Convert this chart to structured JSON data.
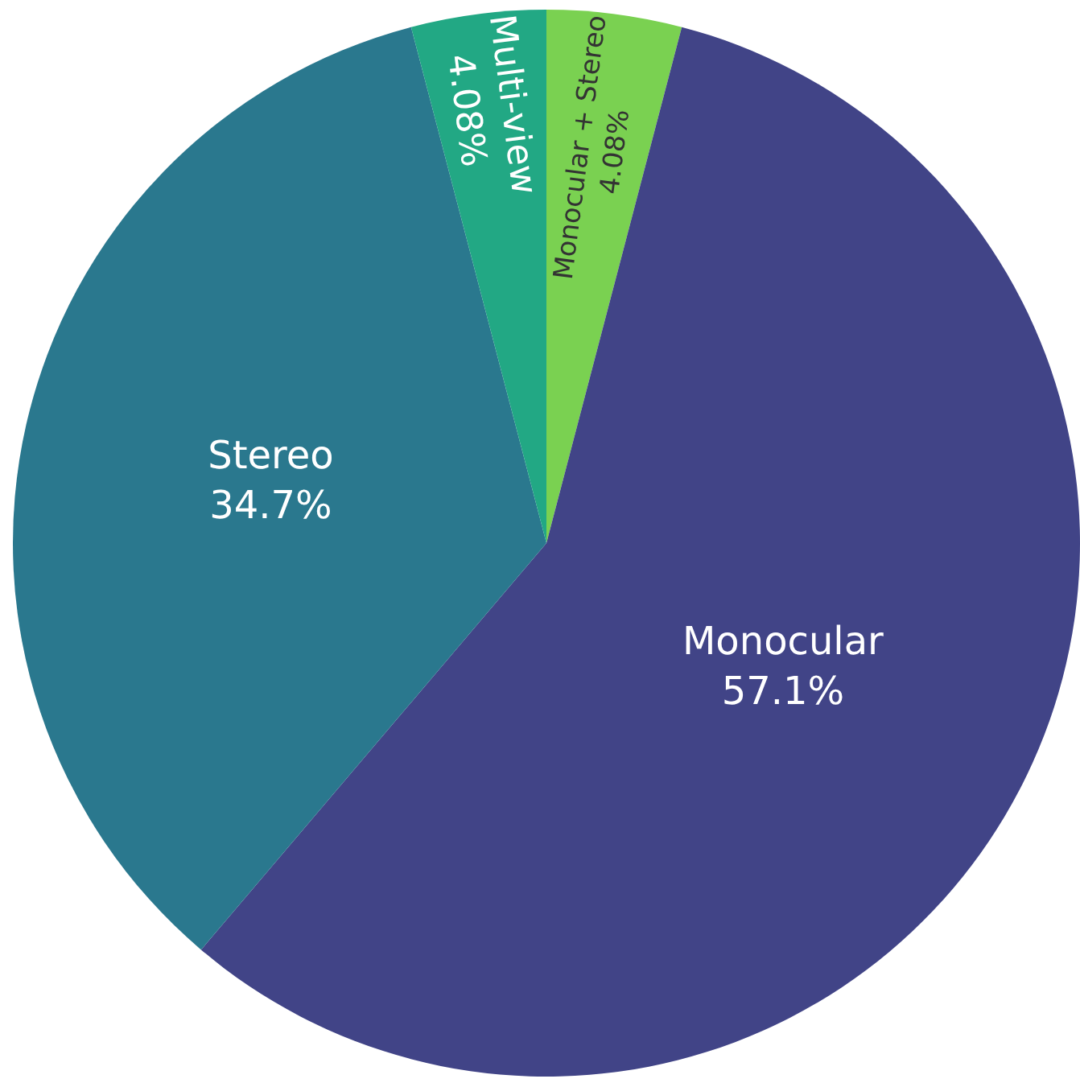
{
  "chart_data": {
    "type": "pie",
    "categories": [
      "Monocular + Stereo",
      "Monocular",
      "Stereo",
      "Multi-view"
    ],
    "values": [
      4.08,
      57.1,
      34.7,
      4.08
    ],
    "value_labels": [
      "4.08%",
      "57.1%",
      "34.7%",
      "4.08%"
    ],
    "colors": [
      "#7ad151",
      "#414487",
      "#2a788e",
      "#22a884"
    ],
    "legend": false
  }
}
